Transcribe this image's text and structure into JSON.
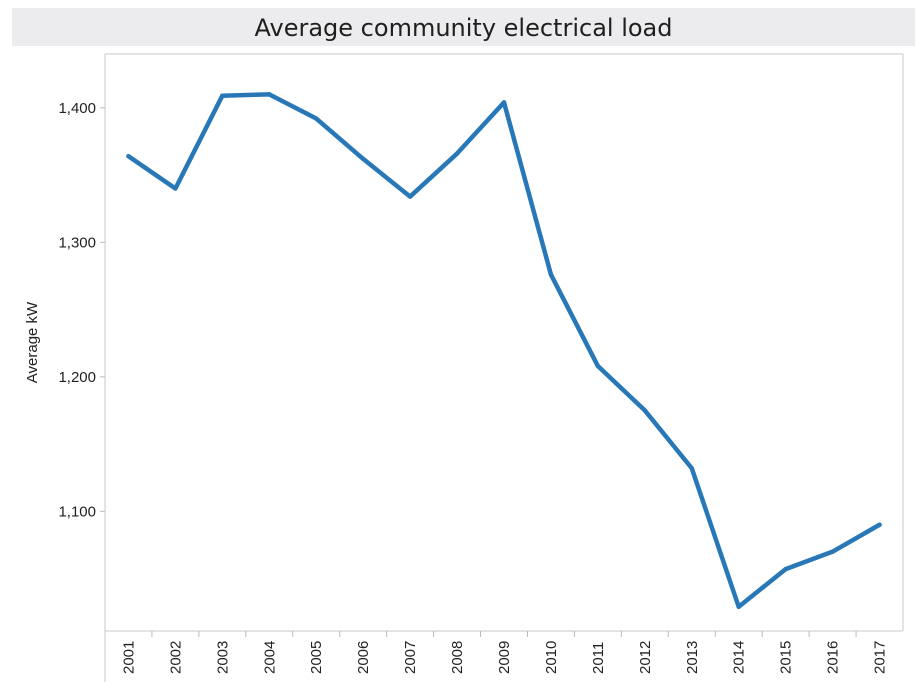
{
  "chart_data": {
    "type": "line",
    "title": "Average community electrical load",
    "ylabel": "Average kW",
    "xlabel": "",
    "x": [
      "2001",
      "2002",
      "2003",
      "2004",
      "2005",
      "2006",
      "2007",
      "2008",
      "2009",
      "2010",
      "2011",
      "2012",
      "2013",
      "2014",
      "2015",
      "2016",
      "2017"
    ],
    "series": [
      {
        "values": [
          1364,
          1340,
          1409,
          1410,
          1392,
          1362,
          1334,
          1366,
          1404,
          1276,
          1208,
          1175,
          1132,
          1029,
          1057,
          1070,
          1090
        ],
        "color": "#2878b8"
      }
    ],
    "ylim": [
      1011,
      1440
    ],
    "yticks": [
      1100,
      1200,
      1300,
      1400
    ],
    "ytick_labels": [
      "1,100",
      "1,200",
      "1,300",
      "1,400"
    ],
    "grid": false,
    "legend": "none"
  }
}
